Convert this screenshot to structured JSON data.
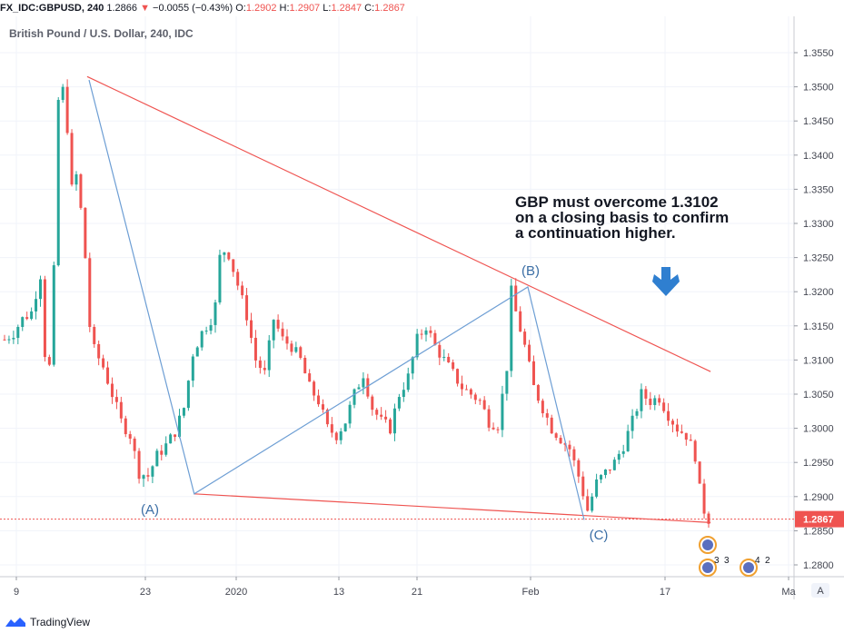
{
  "header": {
    "symbol": "FX_IDC:GBPUSD, 240",
    "last": "1.2866",
    "change": "−0.0055 (−0.43%)",
    "open_label": "O:",
    "open": "1.2902",
    "high_label": "H:",
    "high": "1.2907",
    "low_label": "L:",
    "low": "1.2847",
    "close_label": "C:",
    "close": "1.2867"
  },
  "footer": {
    "brand": "TradingView"
  },
  "chart_data": {
    "type": "candlestick",
    "title": "British Pound / U.S. Dollar, 240, IDC",
    "ylim": [
      1.2785,
      1.3585
    ],
    "y_ticks": [
      "1.3550",
      "1.3500",
      "1.3450",
      "1.3400",
      "1.3350",
      "1.3300",
      "1.3250",
      "1.3200",
      "1.3150",
      "1.3100",
      "1.3050",
      "1.3000",
      "1.2950",
      "1.2900",
      "1.2850",
      "1.2800"
    ],
    "x_ticks": [
      "9",
      "23",
      "2020",
      "13",
      "21",
      "Feb",
      "17",
      "Ma"
    ],
    "last_price_label": "1.2867",
    "colors": {
      "up": "#26a69a",
      "down": "#ef5350",
      "trend": "#ef5350",
      "wave": "#6d9ed4",
      "arrow": "#2f7fd0"
    },
    "annotation": [
      "GBP must overcome 1.3102",
      "on a closing basis to confirm",
      "a continuation higher."
    ],
    "points": [
      {
        "label": "(A)",
        "date": "23",
        "price": 1.2904
      },
      {
        "label": "(B)",
        "date": "Feb",
        "price": 1.3207
      },
      {
        "label": "(C)",
        "date": "Feb 11",
        "price": 1.2866
      }
    ],
    "upper_trendline": [
      [
        13.2,
        1.3515
      ],
      [
        112.8,
        1.3083
      ]
    ],
    "lower_trendline": [
      [
        30.3,
        1.2904
      ],
      [
        112.8,
        1.2862
      ]
    ],
    "wave_path": [
      [
        13.5,
        1.351
      ],
      [
        30.3,
        1.2904
      ],
      [
        83.6,
        1.3207
      ],
      [
        92.6,
        1.2866
      ]
    ],
    "points_series_hint": "price index vs approximate bar position",
    "path": [
      [
        0,
        1.313
      ],
      [
        2,
        1.314
      ],
      [
        4,
        1.316
      ],
      [
        6,
        1.317
      ],
      [
        8,
        1.3225
      ],
      [
        9,
        1.311
      ],
      [
        10,
        1.309
      ],
      [
        11,
        1.323
      ],
      [
        12,
        1.348
      ],
      [
        13,
        1.3495
      ],
      [
        14,
        1.344
      ],
      [
        15,
        1.335
      ],
      [
        16,
        1.337
      ],
      [
        17,
        1.332
      ],
      [
        18,
        1.325
      ],
      [
        19,
        1.315
      ],
      [
        20,
        1.3115
      ],
      [
        22,
        1.309
      ],
      [
        24,
        1.305
      ],
      [
        26,
        1.301
      ],
      [
        28,
        1.299
      ],
      [
        30,
        1.2935
      ],
      [
        32,
        1.293
      ],
      [
        34,
        1.296
      ],
      [
        36,
        1.2975
      ],
      [
        38,
        1.2995
      ],
      [
        40,
        1.303
      ],
      [
        42,
        1.311
      ],
      [
        44,
        1.314
      ],
      [
        46,
        1.316
      ],
      [
        47,
        1.318
      ],
      [
        48,
        1.325
      ],
      [
        49,
        1.326
      ],
      [
        50,
        1.3255
      ],
      [
        52,
        1.321
      ],
      [
        54,
        1.3165
      ],
      [
        56,
        1.31
      ],
      [
        58,
        1.308
      ],
      [
        60,
        1.316
      ],
      [
        62,
        1.313
      ],
      [
        64,
        1.312
      ],
      [
        66,
        1.31
      ],
      [
        68,
        1.306
      ],
      [
        70,
        1.304
      ],
      [
        72,
        1.3
      ],
      [
        74,
        1.299
      ],
      [
        76,
        1.301
      ],
      [
        78,
        1.305
      ],
      [
        80,
        1.308
      ],
      [
        82,
        1.303
      ],
      [
        84,
        1.301
      ],
      [
        86,
        1.3
      ],
      [
        88,
        1.305
      ],
      [
        90,
        1.3075
      ],
      [
        92,
        1.313
      ],
      [
        94,
        1.315
      ],
      [
        96,
        1.312
      ],
      [
        98,
        1.31
      ],
      [
        100,
        1.308
      ],
      [
        102,
        1.306
      ],
      [
        104,
        1.305
      ],
      [
        106,
        1.304
      ],
      [
        108,
        1.301
      ],
      [
        110,
        1.3005
      ],
      [
        112,
        1.309
      ],
      [
        113,
        1.32
      ],
      [
        114,
        1.317
      ],
      [
        116,
        1.312
      ],
      [
        118,
        1.306
      ],
      [
        120,
        1.303
      ],
      [
        122,
        1.3
      ],
      [
        124,
        1.2985
      ],
      [
        126,
        1.297
      ],
      [
        128,
        1.293
      ],
      [
        130,
        1.288
      ],
      [
        132,
        1.292
      ],
      [
        134,
        1.2935
      ],
      [
        136,
        1.295
      ],
      [
        138,
        1.2975
      ],
      [
        140,
        1.301
      ],
      [
        142,
        1.305
      ],
      [
        144,
        1.304
      ],
      [
        146,
        1.3045
      ],
      [
        148,
        1.302
      ],
      [
        150,
        1.3
      ],
      [
        152,
        1.299
      ],
      [
        154,
        1.296
      ],
      [
        155,
        1.291
      ],
      [
        156,
        1.288
      ],
      [
        157,
        1.2867
      ]
    ]
  }
}
